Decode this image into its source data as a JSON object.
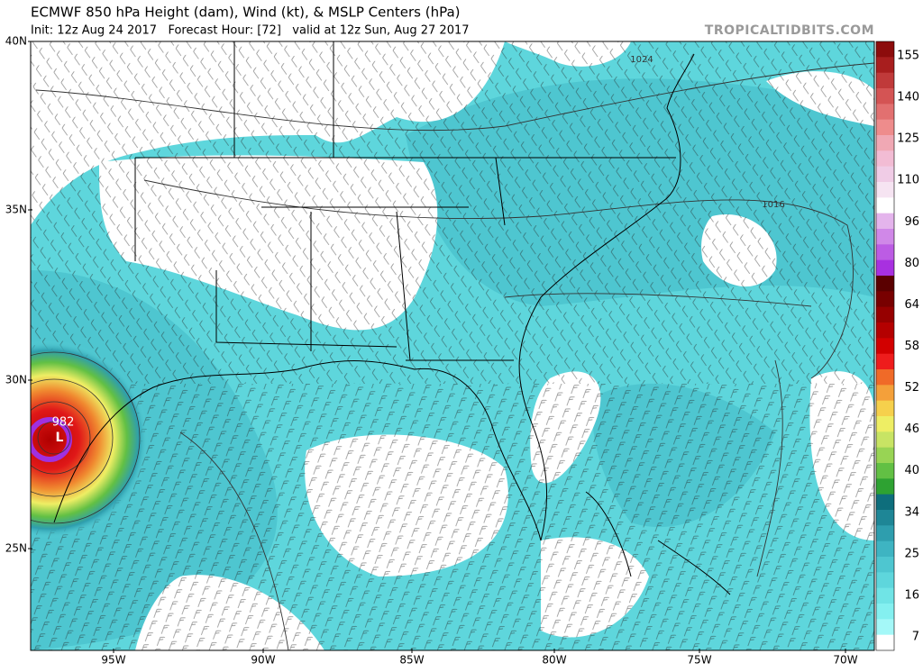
{
  "header": {
    "title": "ECMWF 850 hPa Height (dam), Wind (kt), & MSLP Centers (hPa)",
    "subtitle": "Init: 12z Aug 24 2017   Forecast Hour: [72]   valid at 12z Sun, Aug 27 2017",
    "credit": "TROPICALTIDBITS.COM"
  },
  "map": {
    "lat_labels": [
      "40N",
      "35N",
      "30N",
      "25N"
    ],
    "lon_labels": [
      "95W",
      "90W",
      "85W",
      "80W",
      "75W",
      "70W"
    ],
    "annotations": [
      "1024",
      "1016",
      "982",
      "L"
    ]
  },
  "colorbar": {
    "ticks": [
      155,
      140,
      125,
      110,
      96,
      80,
      64,
      58,
      52,
      46,
      40,
      34,
      25,
      16,
      7
    ],
    "colors": [
      "#8c0c0c",
      "#a81e1e",
      "#c03a3a",
      "#d45454",
      "#e27070",
      "#ee8c8c",
      "#f0a8b4",
      "#f2bcd4",
      "#f0cce6",
      "#f6e4f2",
      "#ffffff",
      "#e4b4ec",
      "#d088e8",
      "#bc5ce4",
      "#a830e0",
      "#5a0000",
      "#780000",
      "#960000",
      "#b40000",
      "#d20000",
      "#ee1c1c",
      "#f06a28",
      "#f4a03a",
      "#f6d04c",
      "#eeee64",
      "#c8e464",
      "#98d454",
      "#62c044",
      "#2ea232",
      "#0e6e7c",
      "#1e8696",
      "#2e9eae",
      "#3eb4c2",
      "#4ec6d0",
      "#5ed6dc",
      "#70e4e6",
      "#84f0f0",
      "#a4f8f8",
      "#ffffff"
    ]
  }
}
